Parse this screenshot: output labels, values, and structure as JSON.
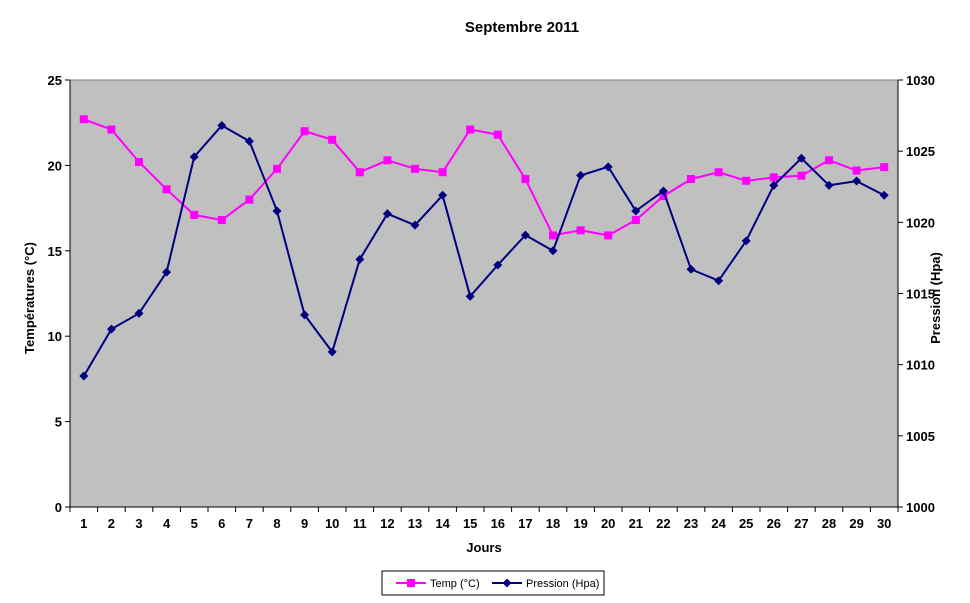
{
  "chart_data": {
    "type": "line",
    "title": "Septembre 2011",
    "xlabel": "Jours",
    "ylabel_left": "Températures  (°C)",
    "ylabel_right": "Pression (Hpa)",
    "x": [
      "1",
      "2",
      "3",
      "4",
      "5",
      "6",
      "7",
      "8",
      "9",
      "10",
      "11",
      "12",
      "13",
      "14",
      "15",
      "16",
      "17",
      "18",
      "19",
      "20",
      "21",
      "22",
      "23",
      "24",
      "25",
      "26",
      "27",
      "28",
      "29",
      "30"
    ],
    "y_left": {
      "min": 0,
      "max": 25,
      "ticks": [
        0,
        5,
        10,
        15,
        20,
        25
      ]
    },
    "y_right": {
      "min": 1000,
      "max": 1030,
      "ticks": [
        1000,
        1005,
        1010,
        1015,
        1020,
        1025,
        1030
      ]
    },
    "grid": false,
    "legend_position": "bottom",
    "series": [
      {
        "name": "Temp (°C)",
        "axis": "left",
        "color": "#ff00ff",
        "marker": "square",
        "values": [
          22.7,
          22.1,
          20.2,
          18.6,
          17.1,
          16.8,
          18.0,
          19.8,
          22.0,
          21.5,
          19.6,
          20.3,
          19.8,
          19.6,
          22.1,
          21.8,
          19.2,
          15.9,
          16.2,
          15.9,
          16.8,
          18.2,
          19.2,
          19.6,
          19.1,
          19.3,
          19.4,
          20.3,
          19.7,
          19.9
        ]
      },
      {
        "name": "Pression (Hpa)",
        "axis": "right",
        "color": "#000080",
        "marker": "diamond",
        "values": [
          1009.2,
          1012.5,
          1013.6,
          1016.5,
          1024.6,
          1026.8,
          1025.7,
          1020.8,
          1013.5,
          1010.9,
          1017.4,
          1020.6,
          1019.8,
          1021.9,
          1014.8,
          1017.0,
          1019.1,
          1018.0,
          1023.3,
          1023.9,
          1020.8,
          1022.2,
          1016.7,
          1015.9,
          1018.7,
          1022.6,
          1024.5,
          1022.6,
          1022.9,
          1021.9
        ]
      }
    ]
  }
}
